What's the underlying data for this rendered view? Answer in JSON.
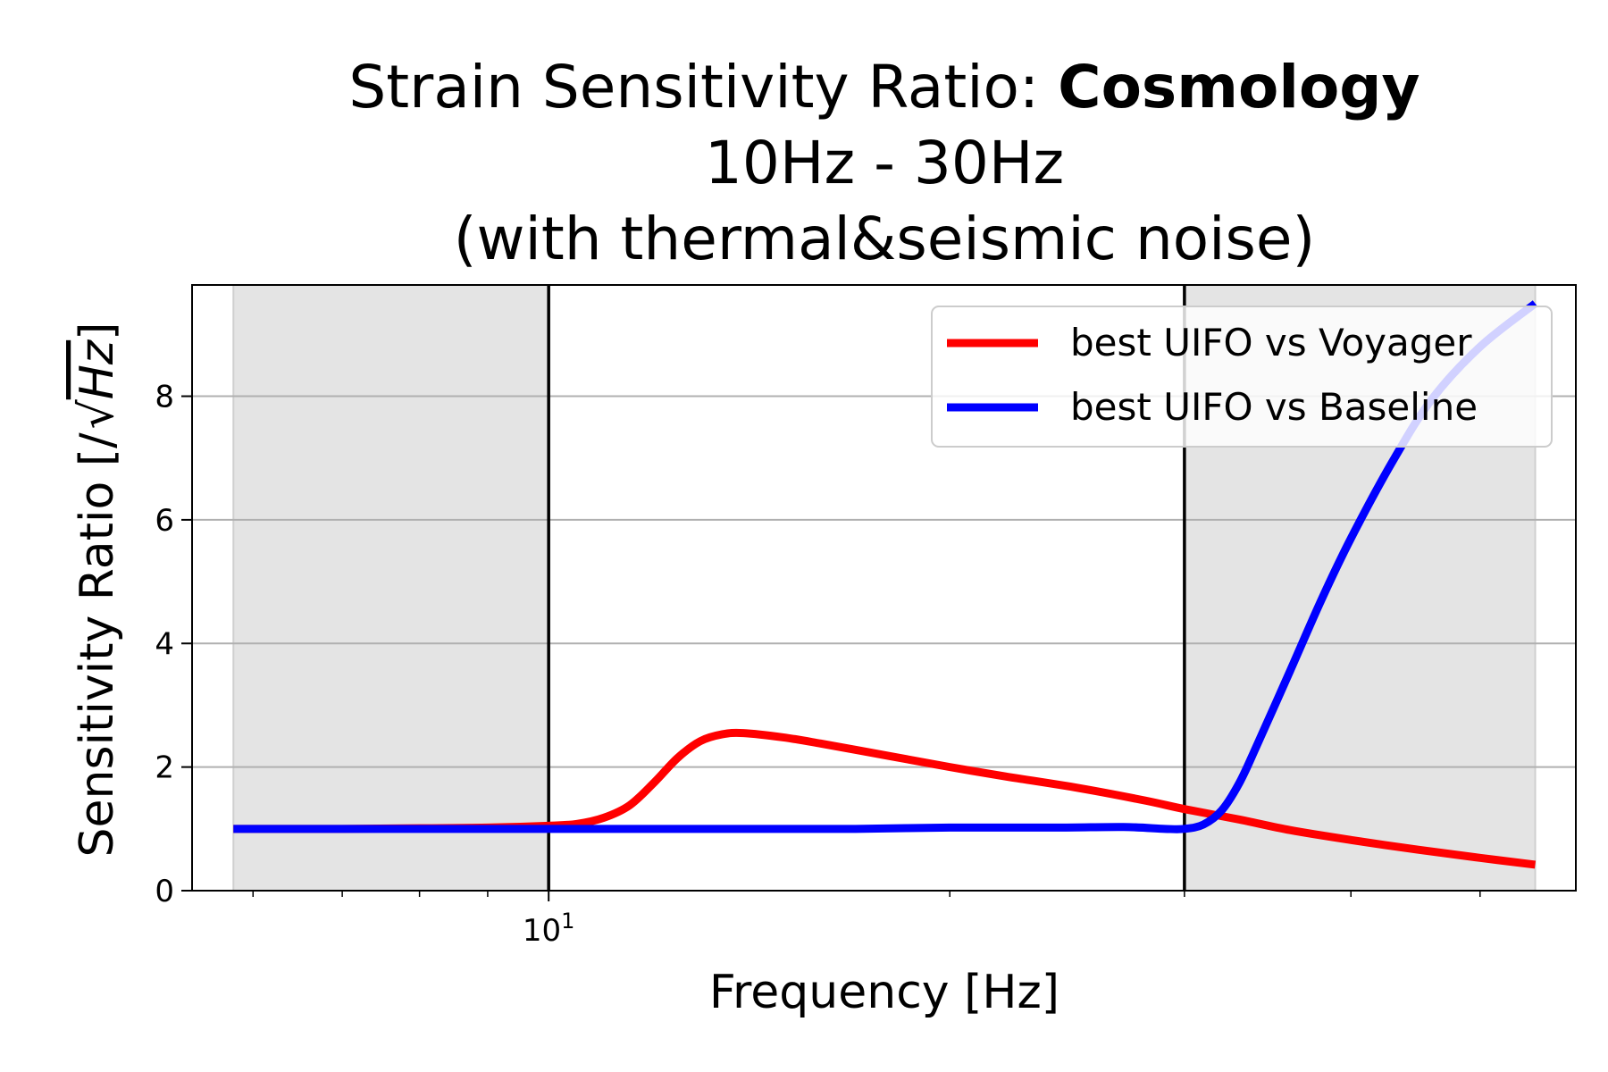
{
  "chart_data": {
    "type": "line",
    "title": {
      "prefix": "Strain Sensitivity Ratio: ",
      "bold": "Cosmology",
      "line2": "10Hz - 30Hz",
      "line3": "(with thermal&seismic noise)"
    },
    "xlabel": "Frequency [Hz]",
    "ylabel_prefix": "Sensitivity Ratio [/",
    "ylabel_unit": "Hz",
    "ylabel_suffix": "]",
    "x_scale": "log",
    "xlim": [
      5.4,
      59
    ],
    "ylim": [
      0,
      9.8
    ],
    "y_ticks": [
      0,
      2,
      4,
      6,
      8
    ],
    "x_major_tick": {
      "value": 10,
      "base": "10",
      "exp": "1"
    },
    "x_minor_ticks": [
      6,
      7,
      8,
      9,
      20,
      30,
      40,
      50
    ],
    "grid": "y",
    "band_lines": [
      10,
      30
    ],
    "shaded_regions": [
      [
        5.8,
        10
      ],
      [
        30,
        55
      ]
    ],
    "legend_position": "upper right",
    "series": [
      {
        "name": "best UIFO vs Voyager",
        "color": "#ff0000",
        "points": [
          [
            5.8,
            1.0
          ],
          [
            7,
            1.0
          ],
          [
            8,
            1.01
          ],
          [
            9,
            1.02
          ],
          [
            10,
            1.05
          ],
          [
            10.5,
            1.08
          ],
          [
            11,
            1.18
          ],
          [
            11.5,
            1.38
          ],
          [
            12,
            1.75
          ],
          [
            12.5,
            2.15
          ],
          [
            13,
            2.42
          ],
          [
            13.5,
            2.53
          ],
          [
            14,
            2.55
          ],
          [
            15,
            2.48
          ],
          [
            16,
            2.38
          ],
          [
            18,
            2.18
          ],
          [
            20,
            2.0
          ],
          [
            22,
            1.85
          ],
          [
            25,
            1.66
          ],
          [
            28,
            1.46
          ],
          [
            30,
            1.32
          ],
          [
            33,
            1.15
          ],
          [
            36,
            0.98
          ],
          [
            40,
            0.82
          ],
          [
            45,
            0.66
          ],
          [
            50,
            0.53
          ],
          [
            55,
            0.42
          ]
        ]
      },
      {
        "name": "best UIFO vs Baseline",
        "color": "#0000ff",
        "points": [
          [
            5.8,
            1.0
          ],
          [
            8,
            1.0
          ],
          [
            10,
            1.0
          ],
          [
            14,
            1.0
          ],
          [
            17,
            1.0
          ],
          [
            20,
            1.02
          ],
          [
            24,
            1.02
          ],
          [
            27,
            1.03
          ],
          [
            29,
            1.0
          ],
          [
            30,
            1.0
          ],
          [
            31,
            1.07
          ],
          [
            32,
            1.3
          ],
          [
            33,
            1.75
          ],
          [
            34,
            2.35
          ],
          [
            36,
            3.55
          ],
          [
            38,
            4.7
          ],
          [
            40,
            5.7
          ],
          [
            43,
            6.95
          ],
          [
            46,
            7.95
          ],
          [
            50,
            8.8
          ],
          [
            55,
            9.5
          ]
        ]
      }
    ]
  }
}
